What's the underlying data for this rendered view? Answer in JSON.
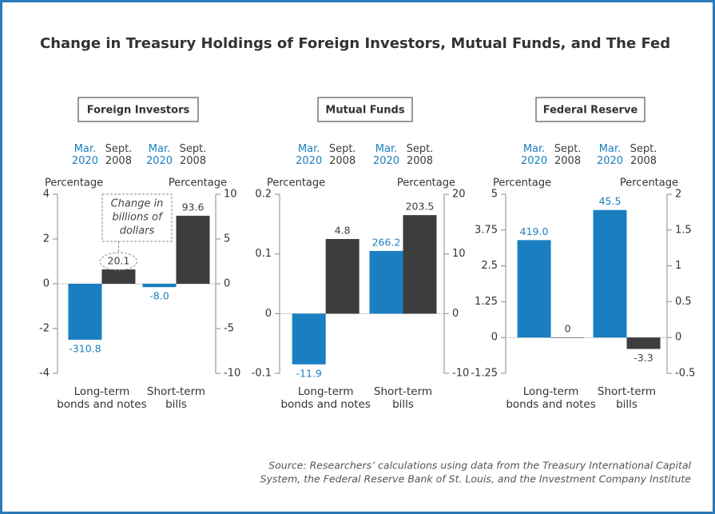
{
  "title": "Change in Treasury Holdings of Foreign Investors, Mutual Funds, and The Fed",
  "source": [
    "Source: Researchers’ calculations using data from the Treasury International Capital",
    "System, the Federal Reserve Bank of St. Louis, and the Investment Company Institute"
  ],
  "chart_data": [
    {
      "type": "bar",
      "title": "Foreign Investors",
      "ylabel": "Percentage",
      "y2label": "Percentage",
      "categories": [
        "Long-term bonds and notes",
        "Short-term bills"
      ],
      "series": [
        {
          "name": "Mar. 2020",
          "color": "#1a7fc1",
          "values": [
            -2.5,
            -0.15
          ],
          "dollar_labels": [
            "-310.8",
            "-8.0"
          ]
        },
        {
          "name": "Sept. 2008",
          "color": "#3d3d3d",
          "axis": "y2",
          "values": [
            1.6,
            7.6
          ],
          "dollar_labels": [
            "20.1",
            "93.6"
          ]
        }
      ],
      "ylim": [
        -4,
        4
      ],
      "yticks": [
        -4,
        -2,
        0,
        2,
        4
      ],
      "y2lim": [
        -10,
        10
      ],
      "y2ticks": [
        -10,
        -5,
        0,
        5,
        10
      ],
      "annotation": [
        "Change in",
        "billions of",
        "dollars"
      ]
    },
    {
      "type": "bar",
      "title": "Mutual Funds",
      "ylabel": "Percentage",
      "y2label": "Percentage",
      "categories": [
        "Long-term bonds and notes",
        "Short-term bills"
      ],
      "series": [
        {
          "name": "Mar. 2020",
          "color": "#1a7fc1",
          "values": [
            -0.085,
            0.105
          ],
          "dollar_labels": [
            "-11.9",
            "266.2"
          ]
        },
        {
          "name": "Sept. 2008",
          "color": "#3d3d3d",
          "axis": "y2",
          "values": [
            12.5,
            16.5
          ],
          "dollar_labels": [
            "4.8",
            "203.5"
          ]
        }
      ],
      "ylim": [
        -0.1,
        0.2
      ],
      "yticks": [
        -0.1,
        0,
        0.1,
        0.2
      ],
      "y2lim": [
        -10,
        20
      ],
      "y2ticks": [
        -10,
        0,
        10,
        20
      ]
    },
    {
      "type": "bar",
      "title": "Federal Reserve",
      "ylabel": "Percentage",
      "y2label": "Percentage",
      "categories": [
        "Long-term bonds and notes",
        "Short-term bills"
      ],
      "series": [
        {
          "name": "Mar. 2020",
          "color": "#1a7fc1",
          "values": [
            3.4,
            4.45
          ],
          "dollar_labels": [
            "419.0",
            "45.5"
          ]
        },
        {
          "name": "Sept. 2008",
          "color": "#3d3d3d",
          "axis": "y2",
          "values": [
            0,
            -0.16
          ],
          "dollar_labels": [
            "0",
            "-3.3"
          ]
        }
      ],
      "ylim": [
        -1.25,
        5
      ],
      "yticks": [
        -1.25,
        0,
        1.25,
        2.5,
        3.75,
        5
      ],
      "y2lim": [
        -0.5,
        2
      ],
      "y2ticks": [
        -0.5,
        0,
        0.5,
        1,
        1.5,
        2
      ]
    }
  ]
}
